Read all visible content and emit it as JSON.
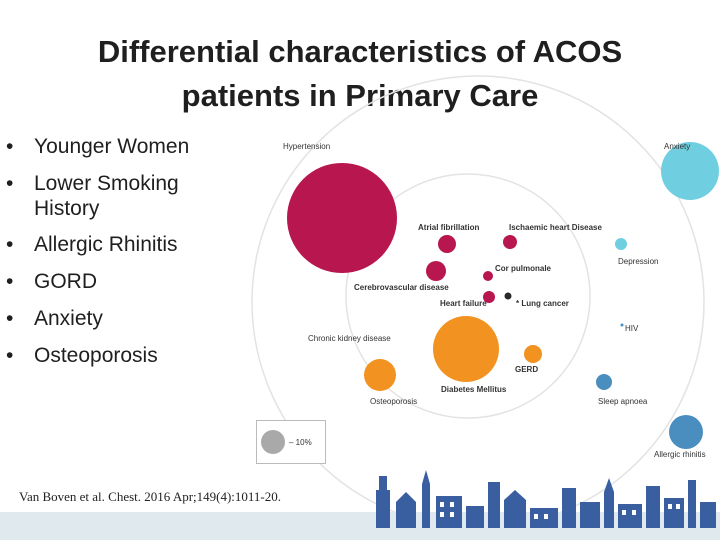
{
  "slide": {
    "title_line1": "Differential characteristics of ACOS",
    "title_line2": "patients in Primary Care"
  },
  "bullets": [
    "Younger Women",
    "Lower Smoking History",
    "Allergic Rhinitis",
    "GORD",
    "Anxiety",
    "Osteoporosis"
  ],
  "bullet_glyph": "•",
  "diagram": {
    "labels": {
      "hypertension": "Hypertension",
      "anxiety": "Anxiety",
      "atrial_fibrillation": "Atrial fibrillation",
      "ischaemic_heart_disease": "Ischaemic heart Disease",
      "depression": "Depression",
      "cor_pulmonale": "Cor pulmonale",
      "cerebrovascular_disease": "Cerebrovascular disease",
      "heart_failure": "Heart failure",
      "lung_cancer": "* Lung cancer",
      "chronic_kidney_disease": "Chronic kidney disease",
      "hiv": "HIV",
      "gerd": "GERD",
      "diabetes_mellitus": "Diabetes Mellitus",
      "osteoporosis": "Osteoporosis",
      "sleep_apnoea": "Sleep apnoea",
      "allergic_rhinitis": "Allergic rhinitis",
      "legend_value": "– 10%"
    },
    "colors": {
      "cardio": "#b8164f",
      "mental": "#6fcfe0",
      "gastro": "#f29221",
      "respiratory": "#4a8ec0",
      "cancer": "#2a2a2a",
      "ring": "#e3e3e3",
      "legend": "#a9a9a9"
    }
  },
  "citation": "Van Boven et al. Chest. 2016 Apr;149(4):1011-20."
}
